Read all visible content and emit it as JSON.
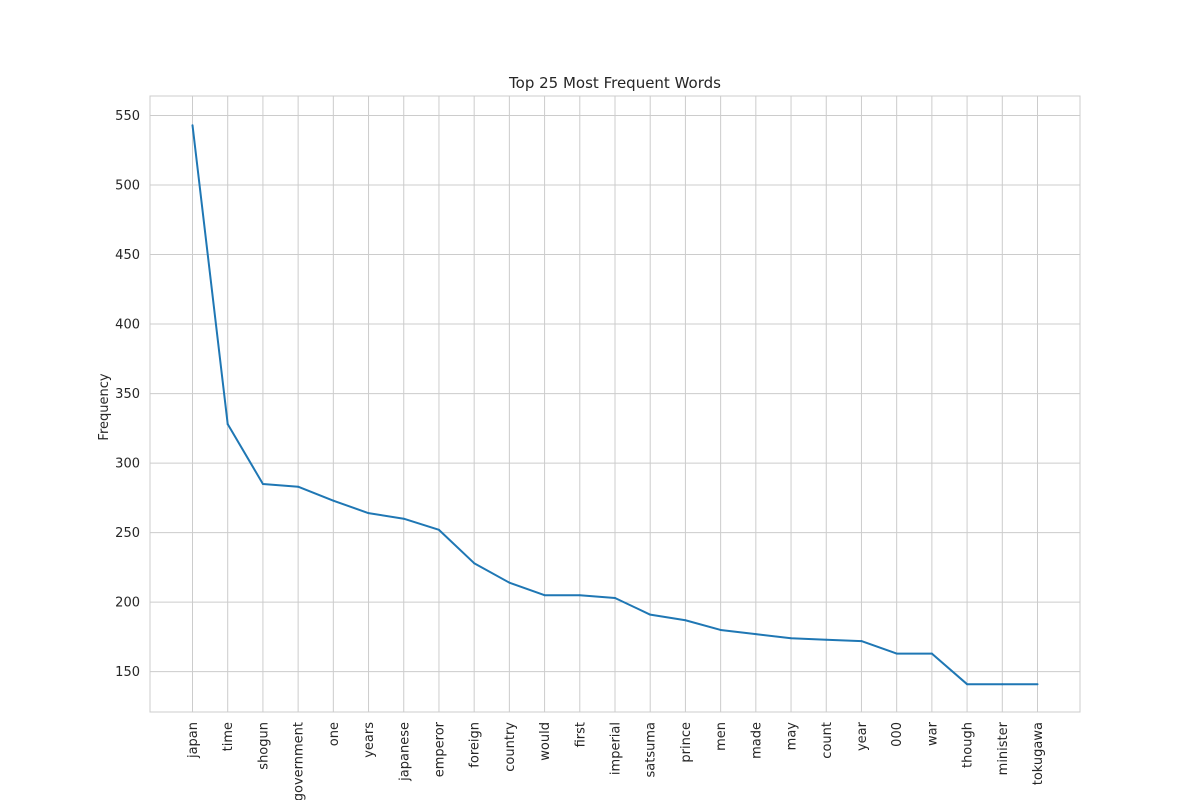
{
  "chart_data": {
    "type": "line",
    "title": "Top 25 Most Frequent Words",
    "xlabel": "",
    "ylabel": "Frequency",
    "categories": [
      "japan",
      "time",
      "shogun",
      "government",
      "one",
      "years",
      "japanese",
      "emperor",
      "foreign",
      "country",
      "would",
      "first",
      "imperial",
      "satsuma",
      "prince",
      "men",
      "made",
      "may",
      "count",
      "year",
      "000",
      "war",
      "though",
      "minister",
      "tokugawa"
    ],
    "values": [
      543,
      328,
      285,
      283,
      273,
      264,
      260,
      252,
      228,
      214,
      205,
      205,
      203,
      191,
      187,
      180,
      177,
      174,
      173,
      172,
      163,
      163,
      141,
      141,
      141
    ],
    "yticks": [
      150,
      200,
      250,
      300,
      350,
      400,
      450,
      500,
      550
    ],
    "ylim": [
      121,
      564
    ],
    "grid": true,
    "line_color": "#1f77b4",
    "grid_color": "#cccccc"
  }
}
